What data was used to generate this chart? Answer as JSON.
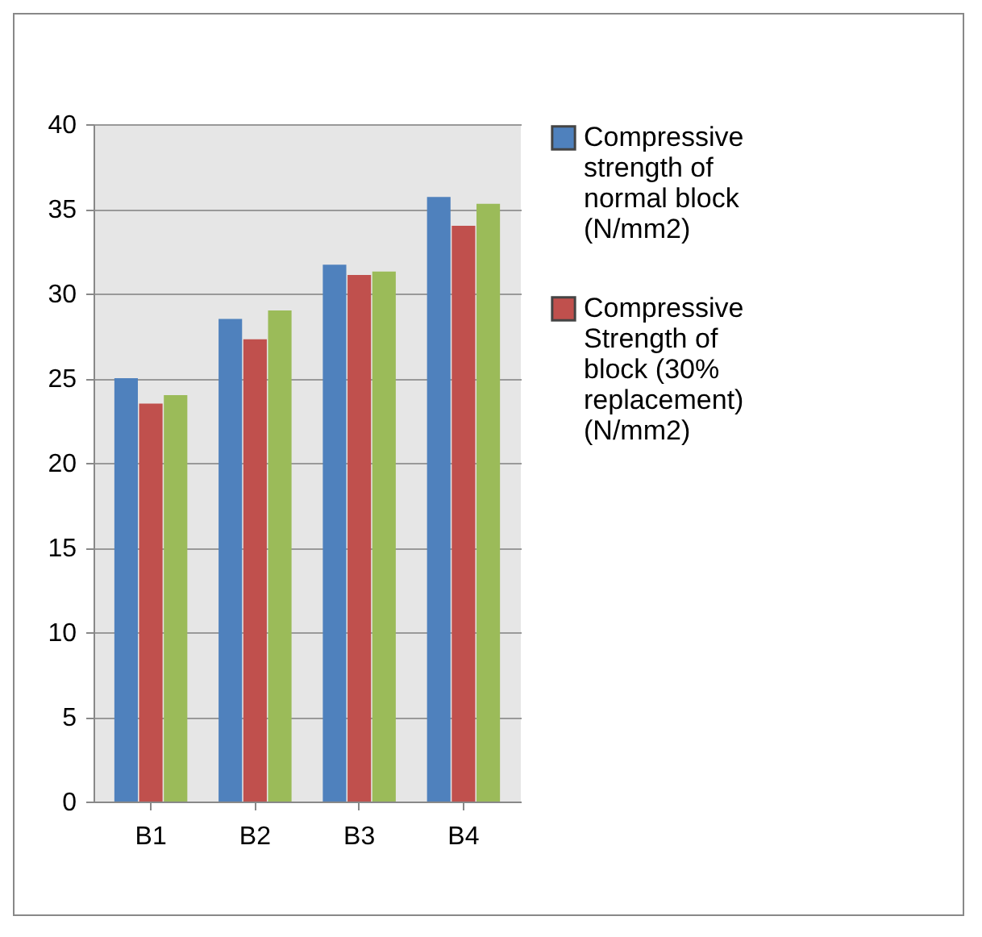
{
  "chart_data": {
    "type": "bar",
    "categories": [
      "B1",
      "B2",
      "B3",
      "B4"
    ],
    "series": [
      {
        "name": "Compressive strength of normal block (N/mm2)",
        "color": "#4f81bd",
        "values": [
          25,
          28.5,
          31.7,
          35.7
        ]
      },
      {
        "name": "Compressive Strength of block (30% replacement) (N/mm2)",
        "color": "#c0504d",
        "values": [
          23.5,
          27.3,
          31.1,
          34
        ]
      },
      {
        "color": "#9bbb59",
        "values": [
          24,
          29,
          31.3,
          35.3
        ]
      }
    ],
    "ylim": [
      0,
      40
    ],
    "yticks": [
      0,
      5,
      10,
      15,
      20,
      25,
      30,
      35,
      40
    ],
    "grid": "y",
    "legend": "right"
  }
}
